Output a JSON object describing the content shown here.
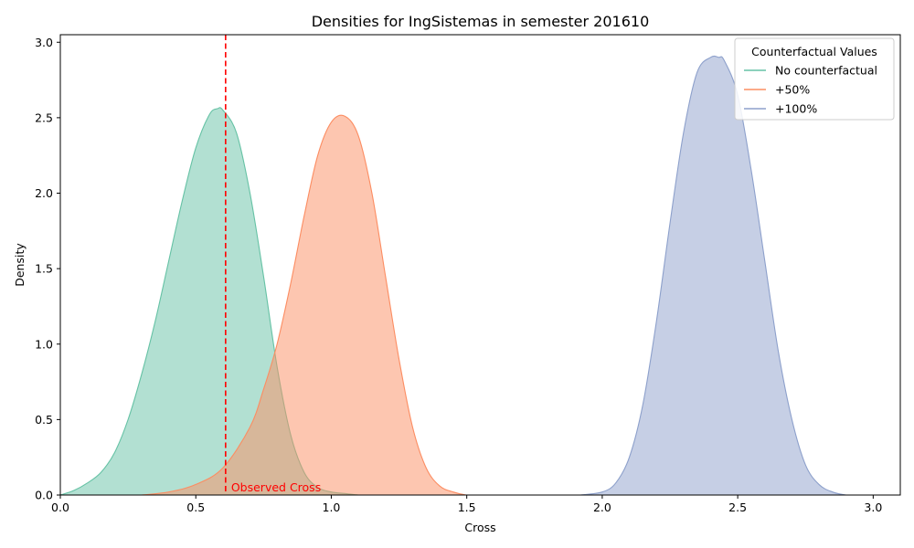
{
  "chart_data": {
    "type": "area",
    "title": "Densities for IngSistemas in semester 201610",
    "xlabel": "Cross",
    "ylabel": "Density",
    "xlim": [
      0.0,
      3.1
    ],
    "ylim": [
      0.0,
      3.05
    ],
    "xticks": [
      "0.0",
      "0.5",
      "1.0",
      "1.5",
      "2.0",
      "2.5",
      "3.0"
    ],
    "yticks": [
      "0.0",
      "0.5",
      "1.0",
      "1.5",
      "2.0",
      "2.5",
      "3.0"
    ],
    "grid": false,
    "legend": {
      "title": "Counterfactual Values",
      "placement": "top-right"
    },
    "series": [
      {
        "name": "No counterfactual",
        "color": "#66c2a5",
        "fill": "#b2e0d1",
        "x": [
          0.0,
          0.05,
          0.1,
          0.15,
          0.2,
          0.25,
          0.3,
          0.35,
          0.4,
          0.45,
          0.5,
          0.55,
          0.58,
          0.6,
          0.65,
          0.7,
          0.75,
          0.8,
          0.85,
          0.9,
          0.95,
          1.0,
          1.05,
          1.1,
          1.13
        ],
        "y": [
          0.0,
          0.03,
          0.08,
          0.15,
          0.28,
          0.5,
          0.8,
          1.15,
          1.55,
          1.95,
          2.3,
          2.52,
          2.56,
          2.55,
          2.4,
          2.0,
          1.45,
          0.85,
          0.4,
          0.15,
          0.05,
          0.02,
          0.01,
          0.0,
          0.0
        ]
      },
      {
        "name": "+50%",
        "color": "#fc8d62",
        "fill": "#fdc0a8",
        "x": [
          0.3,
          0.4,
          0.5,
          0.6,
          0.7,
          0.75,
          0.8,
          0.85,
          0.9,
          0.95,
          1.0,
          1.05,
          1.1,
          1.15,
          1.2,
          1.25,
          1.3,
          1.35,
          1.4,
          1.45,
          1.5,
          1.55
        ],
        "y": [
          0.0,
          0.02,
          0.07,
          0.18,
          0.45,
          0.7,
          1.0,
          1.4,
          1.85,
          2.25,
          2.47,
          2.51,
          2.38,
          2.0,
          1.45,
          0.9,
          0.45,
          0.18,
          0.06,
          0.02,
          0.0,
          0.0
        ]
      },
      {
        "name": "+100%",
        "color": "#8da0cb",
        "fill": "#c5cee3",
        "x": [
          1.92,
          2.0,
          2.05,
          2.1,
          2.15,
          2.2,
          2.25,
          2.3,
          2.35,
          2.4,
          2.43,
          2.45,
          2.5,
          2.55,
          2.6,
          2.65,
          2.7,
          2.75,
          2.8,
          2.85,
          2.9,
          2.94
        ],
        "y": [
          0.0,
          0.02,
          0.08,
          0.25,
          0.6,
          1.15,
          1.8,
          2.4,
          2.8,
          2.9,
          2.9,
          2.88,
          2.65,
          2.15,
          1.55,
          0.95,
          0.5,
          0.2,
          0.07,
          0.02,
          0.0,
          0.0
        ]
      }
    ],
    "annotations": [
      {
        "type": "vline",
        "x": 0.61,
        "color": "#ff0000",
        "label": "Observed Cross"
      }
    ]
  }
}
